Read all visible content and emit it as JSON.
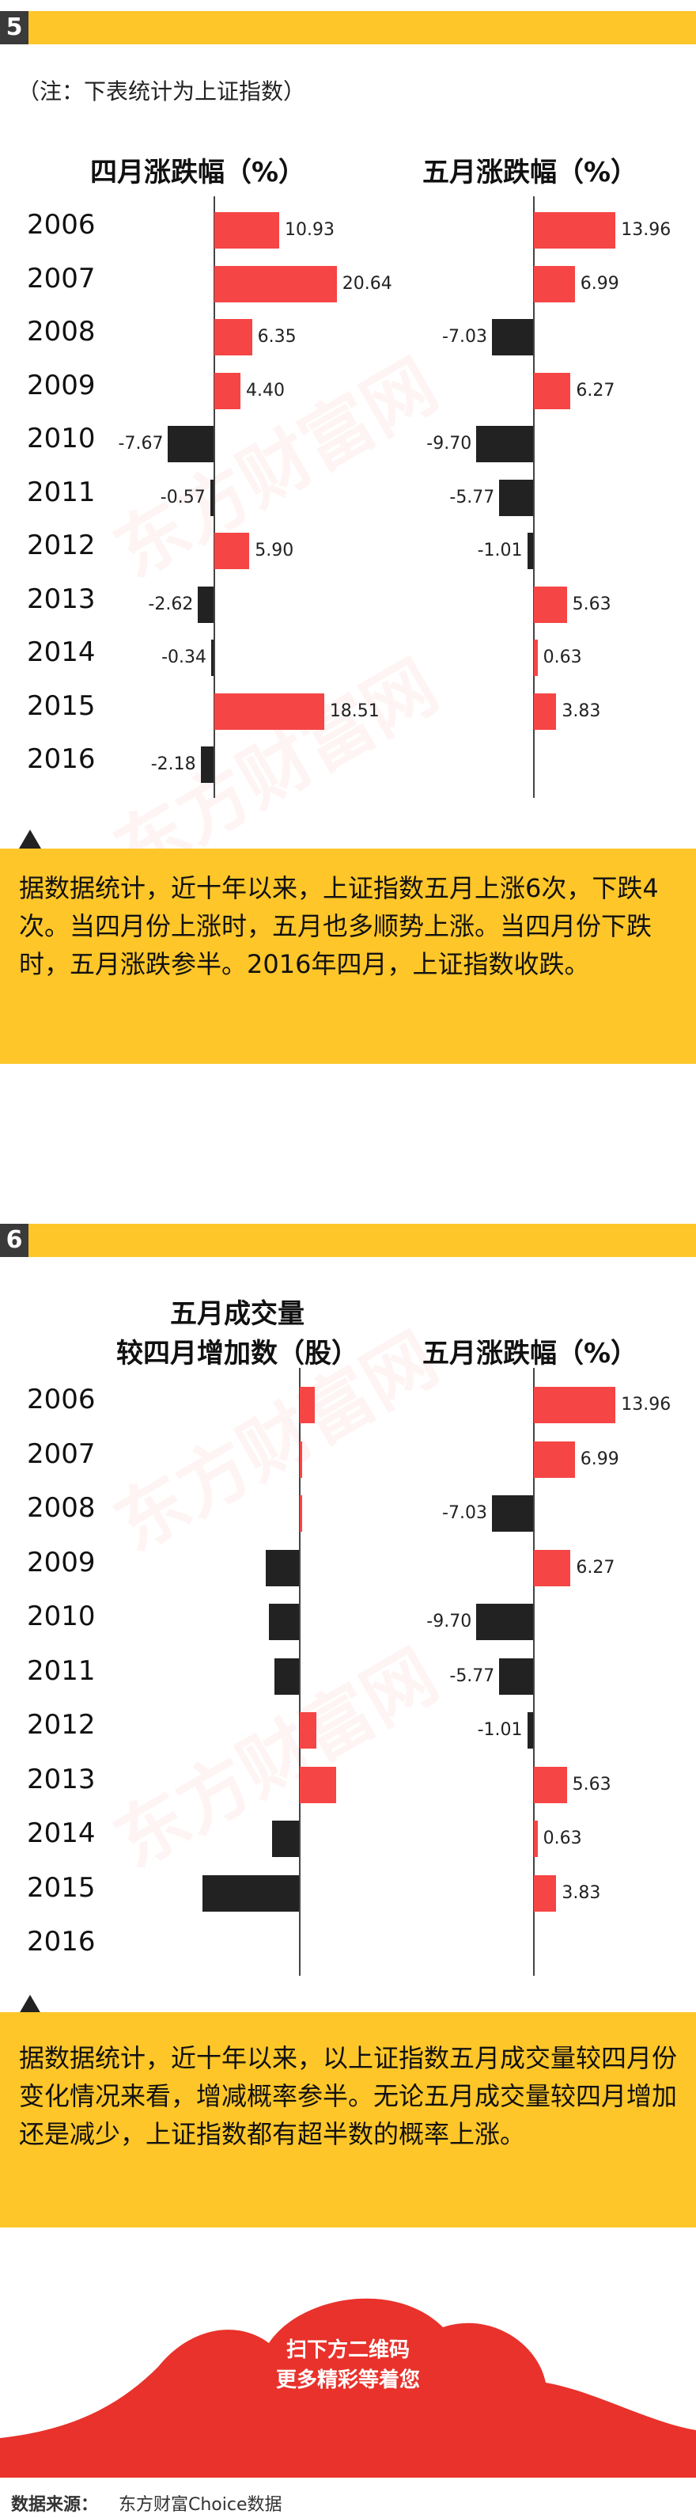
{
  "section5": {
    "number": "5",
    "note": "（注：下表统计为上证指数）",
    "chart_data": [
      {
        "type": "bar",
        "orientation": "horizontal",
        "title": "四月涨跌幅（%）",
        "categories": [
          "2006",
          "2007",
          "2008",
          "2009",
          "2010",
          "2011",
          "2012",
          "2013",
          "2014",
          "2015",
          "2016"
        ],
        "values": [
          10.93,
          20.64,
          6.35,
          4.4,
          -7.67,
          -0.57,
          5.9,
          -2.62,
          -0.34,
          18.51,
          -2.18
        ],
        "labels": [
          "10.93",
          "20.64",
          "6.35",
          "4.40",
          "-7.67",
          "-0.57",
          "5.90",
          "-2.62",
          "-0.34",
          "18.51",
          "-2.18"
        ],
        "colors": {
          "positive": "#f54545",
          "negative": "#222222"
        }
      },
      {
        "type": "bar",
        "orientation": "horizontal",
        "title": "五月涨跌幅（%）",
        "categories": [
          "2006",
          "2007",
          "2008",
          "2009",
          "2010",
          "2011",
          "2012",
          "2013",
          "2014",
          "2015"
        ],
        "values": [
          13.96,
          6.99,
          -7.03,
          6.27,
          -9.7,
          -5.77,
          -1.01,
          5.63,
          0.63,
          3.83
        ],
        "labels": [
          "13.96",
          "6.99",
          "-7.03",
          "6.27",
          "-9.70",
          "-5.77",
          "-1.01",
          "5.63",
          "0.63",
          "3.83"
        ],
        "colors": {
          "positive": "#f54545",
          "negative": "#222222"
        }
      }
    ],
    "summary": "据数据统计，近十年以来，上证指数五月上涨6次，下跌4次。当四月份上涨时，五月也多顺势上涨。当四月份下跌时，五月涨跌参半。2016年四月，上证指数收跌。"
  },
  "section6": {
    "number": "6",
    "chart_data": [
      {
        "type": "bar",
        "orientation": "horizontal",
        "title_line1": "五月成交量",
        "title_line2": "较四月增加数（股）",
        "categories": [
          "2006",
          "2007",
          "2008",
          "2009",
          "2010",
          "2011",
          "2012",
          "2013",
          "2014",
          "2015",
          "2016"
        ],
        "values": [
          0.45,
          0,
          0.08,
          -1.0,
          -0.9,
          -0.75,
          0.5,
          1.1,
          -0.8,
          -2.9,
          null
        ],
        "colors": {
          "positive": "#f54545",
          "negative": "#222222"
        }
      },
      {
        "type": "bar",
        "orientation": "horizontal",
        "title": "五月涨跌幅（%）",
        "categories": [
          "2006",
          "2007",
          "2008",
          "2009",
          "2010",
          "2011",
          "2012",
          "2013",
          "2014",
          "2015"
        ],
        "values": [
          13.96,
          6.99,
          -7.03,
          6.27,
          -9.7,
          -5.77,
          -1.01,
          5.63,
          0.63,
          3.83
        ],
        "labels": [
          "13.96",
          "6.99",
          "-7.03",
          "6.27",
          "-9.70",
          "-5.77",
          "-1.01",
          "5.63",
          "0.63",
          "3.83"
        ],
        "colors": {
          "positive": "#f54545",
          "negative": "#222222"
        }
      }
    ],
    "summary": "据数据统计，近十年以来，以上证指数五月成交量较四月份变化情况来看，增减概率参半。无论五月成交量较四月增加还是减少，上证指数都有超半数的概率上涨。"
  },
  "footer": {
    "cta_line1": "扫下方二维码",
    "cta_line2": "更多精彩等着您",
    "source_label": "数据来源：",
    "source_value": "东方财富Choice数据"
  }
}
